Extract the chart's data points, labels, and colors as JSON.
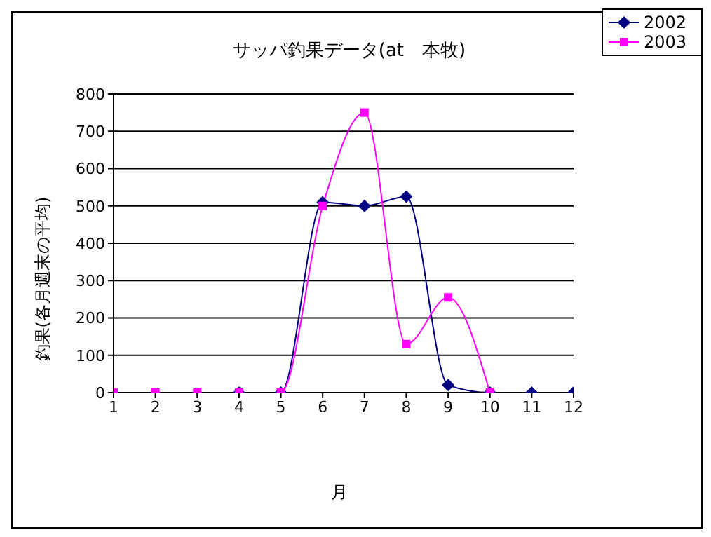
{
  "chart_data": {
    "type": "line",
    "title": "サッパ釣果データ(at　本牧)",
    "xlabel": "月",
    "ylabel": "釣果(各月週末の平均)",
    "x": [
      1,
      2,
      3,
      4,
      5,
      6,
      7,
      8,
      9,
      10,
      11,
      12
    ],
    "series": [
      {
        "name": "2002",
        "color": "#000080",
        "marker": "diamond",
        "values": [
          null,
          null,
          null,
          0,
          0,
          510,
          500,
          525,
          20,
          0,
          0,
          0
        ]
      },
      {
        "name": "2003",
        "color": "#ff00ff",
        "marker": "square",
        "values": [
          0,
          0,
          0,
          0,
          0,
          500,
          750,
          130,
          255,
          0,
          null,
          null
        ]
      }
    ],
    "xlim": [
      1,
      12
    ],
    "xticks": [
      1,
      2,
      3,
      4,
      5,
      6,
      7,
      8,
      9,
      10,
      11,
      12
    ],
    "ylim": [
      0,
      800
    ],
    "yticks": [
      0,
      100,
      200,
      300,
      400,
      500,
      600,
      700,
      800
    ],
    "grid": "y",
    "legend": "top right",
    "line_style": "solid"
  }
}
